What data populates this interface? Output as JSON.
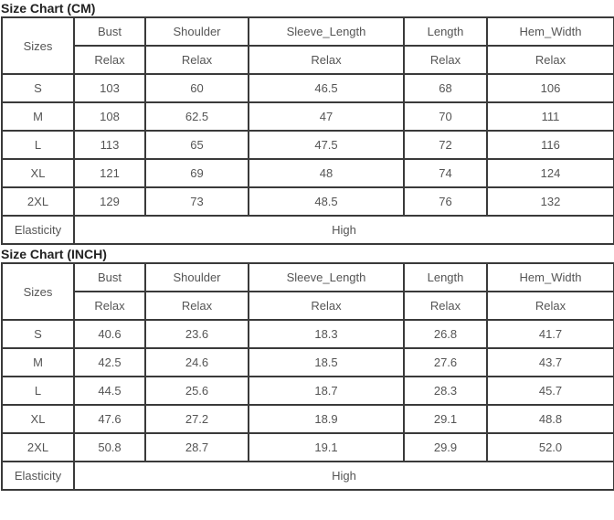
{
  "charts": [
    {
      "title": "Size Chart (CM)",
      "header": [
        "Sizes",
        "Bust",
        "Shoulder",
        "Sleeve_Length",
        "Length",
        "Hem_Width"
      ],
      "subheader": [
        "Relax",
        "Relax",
        "Relax",
        "Relax",
        "Relax"
      ],
      "rows": [
        [
          "S",
          "103",
          "60",
          "46.5",
          "68",
          "106"
        ],
        [
          "M",
          "108",
          "62.5",
          "47",
          "70",
          "111"
        ],
        [
          "L",
          "113",
          "65",
          "47.5",
          "72",
          "116"
        ],
        [
          "XL",
          "121",
          "69",
          "48",
          "74",
          "124"
        ],
        [
          "2XL",
          "129",
          "73",
          "48.5",
          "76",
          "132"
        ]
      ],
      "elasticity_label": "Elasticity",
      "elasticity_value": "High"
    },
    {
      "title": "Size Chart (INCH)",
      "header": [
        "Sizes",
        "Bust",
        "Shoulder",
        "Sleeve_Length",
        "Length",
        "Hem_Width"
      ],
      "subheader": [
        "Relax",
        "Relax",
        "Relax",
        "Relax",
        "Relax"
      ],
      "rows": [
        [
          "S",
          "40.6",
          "23.6",
          "18.3",
          "26.8",
          "41.7"
        ],
        [
          "M",
          "42.5",
          "24.6",
          "18.5",
          "27.6",
          "43.7"
        ],
        [
          "L",
          "44.5",
          "25.6",
          "18.7",
          "28.3",
          "45.7"
        ],
        [
          "XL",
          "47.6",
          "27.2",
          "18.9",
          "29.1",
          "48.8"
        ],
        [
          "2XL",
          "50.8",
          "28.7",
          "19.1",
          "29.9",
          "52.0"
        ]
      ],
      "elasticity_label": "Elasticity",
      "elasticity_value": "High"
    }
  ]
}
